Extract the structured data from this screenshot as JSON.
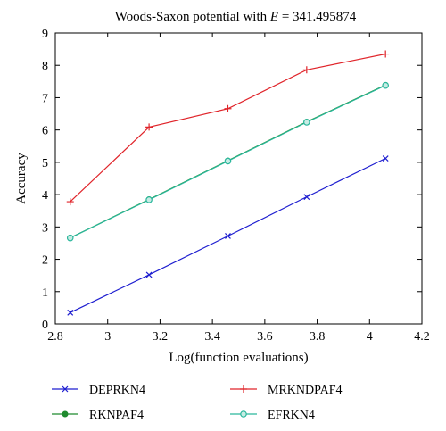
{
  "chart_data": {
    "type": "line",
    "title": {
      "prefix": "Woods-Saxon potential with ",
      "variable": "E",
      "suffix": " = 341.495874"
    },
    "xlabel": "Log(function evaluations)",
    "ylabel": "Accuracy",
    "xlim": [
      2.8,
      4.2
    ],
    "ylim": [
      0,
      9
    ],
    "xticks": [
      2.8,
      3,
      3.2,
      3.4,
      3.6,
      3.8,
      4,
      4.2
    ],
    "xtick_labels": [
      "2.8",
      "3",
      "3.2",
      "3.4",
      "3.6",
      "3.8",
      "4",
      "4.2"
    ],
    "yticks": [
      0,
      1,
      2,
      3,
      4,
      5,
      6,
      7,
      8,
      9
    ],
    "ytick_labels": [
      "0",
      "1",
      "2",
      "3",
      "4",
      "5",
      "6",
      "7",
      "8",
      "9"
    ],
    "grid": false,
    "legend_position": "below",
    "series": [
      {
        "name": "DEPRKN4",
        "color": "#1f1fd0",
        "marker": "x",
        "points": [
          [
            2.857,
            0.35
          ],
          [
            3.158,
            1.52
          ],
          [
            3.459,
            2.72
          ],
          [
            3.76,
            3.93
          ],
          [
            4.061,
            5.12
          ]
        ]
      },
      {
        "name": "MRKNDPAF4",
        "color": "#e0242a",
        "marker": "plus",
        "points": [
          [
            2.857,
            3.78
          ],
          [
            3.158,
            6.09
          ],
          [
            3.459,
            6.66
          ],
          [
            3.76,
            7.86
          ],
          [
            4.061,
            8.35
          ]
        ]
      },
      {
        "name": "RKNPAF4",
        "color": "#1e8a2e",
        "marker": "dot",
        "points": [
          [
            2.857,
            2.66
          ],
          [
            3.158,
            3.85
          ],
          [
            3.459,
            5.05
          ],
          [
            3.76,
            6.25
          ],
          [
            4.061,
            7.39
          ]
        ]
      },
      {
        "name": "EFRKN4",
        "color": "#2ab79c",
        "marker": "circle",
        "points": [
          [
            2.857,
            2.66
          ],
          [
            3.158,
            3.84
          ],
          [
            3.459,
            5.04
          ],
          [
            3.76,
            6.24
          ],
          [
            4.061,
            7.38
          ]
        ]
      }
    ]
  }
}
